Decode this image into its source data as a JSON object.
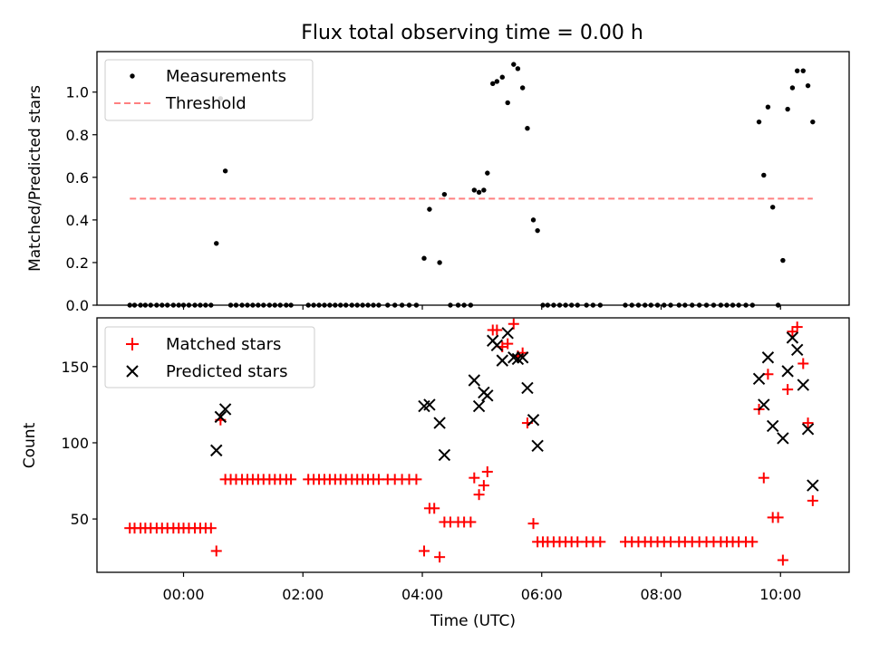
{
  "chart_data": [
    {
      "type": "scatter",
      "title": "Flux total observing time = 0.00 h",
      "ylabel": "Matched/Predicted stars",
      "xlabel": "",
      "xlim": [
        -1.45,
        11.15
      ],
      "ylim": [
        0,
        1.19
      ],
      "yticks": [
        0.0,
        0.2,
        0.4,
        0.6,
        0.8,
        1.0
      ],
      "ytick_labels": [
        "0.0",
        "0.2",
        "0.4",
        "0.6",
        "0.8",
        "1.0"
      ],
      "xticks": [
        0,
        2,
        4,
        6,
        8,
        10
      ],
      "legend_position": "top-left",
      "series": [
        {
          "name": "Measurements",
          "marker": "dot",
          "color": "#000000",
          "points": [
            [
              -0.9,
              0
            ],
            [
              -0.82,
              0
            ],
            [
              -0.72,
              0
            ],
            [
              -0.64,
              0
            ],
            [
              -0.55,
              0
            ],
            [
              -0.45,
              0
            ],
            [
              -0.36,
              0
            ],
            [
              -0.27,
              0
            ],
            [
              -0.17,
              0
            ],
            [
              -0.08,
              0
            ],
            [
              0.0,
              0
            ],
            [
              0.09,
              0
            ],
            [
              0.19,
              0
            ],
            [
              0.28,
              0
            ],
            [
              0.37,
              0
            ],
            [
              0.46,
              0
            ],
            [
              0.55,
              0.29
            ],
            [
              0.62,
              0.97
            ],
            [
              0.7,
              0.63
            ],
            [
              0.79,
              0
            ],
            [
              0.88,
              0
            ],
            [
              0.98,
              0
            ],
            [
              1.07,
              0
            ],
            [
              1.16,
              0
            ],
            [
              1.25,
              0
            ],
            [
              1.34,
              0
            ],
            [
              1.44,
              0
            ],
            [
              1.53,
              0
            ],
            [
              1.62,
              0
            ],
            [
              1.72,
              0
            ],
            [
              1.8,
              0
            ],
            [
              2.09,
              0
            ],
            [
              2.18,
              0
            ],
            [
              2.27,
              0
            ],
            [
              2.36,
              0
            ],
            [
              2.45,
              0
            ],
            [
              2.54,
              0
            ],
            [
              2.63,
              0
            ],
            [
              2.72,
              0
            ],
            [
              2.82,
              0
            ],
            [
              2.91,
              0
            ],
            [
              3.0,
              0
            ],
            [
              3.09,
              0
            ],
            [
              3.18,
              0
            ],
            [
              3.27,
              0
            ],
            [
              3.42,
              0
            ],
            [
              3.54,
              0
            ],
            [
              3.66,
              0
            ],
            [
              3.78,
              0
            ],
            [
              3.9,
              0
            ],
            [
              4.03,
              0.22
            ],
            [
              4.12,
              0.45
            ],
            [
              4.29,
              0.2
            ],
            [
              4.37,
              0.52
            ],
            [
              4.47,
              0
            ],
            [
              4.6,
              0
            ],
            [
              4.7,
              0
            ],
            [
              4.81,
              0
            ],
            [
              4.87,
              0.54
            ],
            [
              4.95,
              0.53
            ],
            [
              5.03,
              0.54
            ],
            [
              5.09,
              0.62
            ],
            [
              5.18,
              1.04
            ],
            [
              5.25,
              1.05
            ],
            [
              5.34,
              1.07
            ],
            [
              5.43,
              0.95
            ],
            [
              5.53,
              1.13
            ],
            [
              5.6,
              1.11
            ],
            [
              5.68,
              1.02
            ],
            [
              5.76,
              0.83
            ],
            [
              5.86,
              0.4
            ],
            [
              5.93,
              0.35
            ],
            [
              6.02,
              0
            ],
            [
              6.1,
              0
            ],
            [
              6.2,
              0
            ],
            [
              6.3,
              0
            ],
            [
              6.4,
              0
            ],
            [
              6.5,
              0
            ],
            [
              6.6,
              0
            ],
            [
              6.75,
              0
            ],
            [
              6.86,
              0
            ],
            [
              6.98,
              0
            ],
            [
              7.4,
              0
            ],
            [
              7.51,
              0
            ],
            [
              7.62,
              0
            ],
            [
              7.73,
              0
            ],
            [
              7.83,
              0
            ],
            [
              7.94,
              0
            ],
            [
              8.05,
              0
            ],
            [
              8.16,
              0
            ],
            [
              8.3,
              0
            ],
            [
              8.4,
              0
            ],
            [
              8.52,
              0
            ],
            [
              8.64,
              0
            ],
            [
              8.76,
              0
            ],
            [
              8.88,
              0
            ],
            [
              9.0,
              0
            ],
            [
              9.1,
              0
            ],
            [
              9.2,
              0
            ],
            [
              9.3,
              0
            ],
            [
              9.42,
              0
            ],
            [
              9.53,
              0
            ],
            [
              9.64,
              0.86
            ],
            [
              9.72,
              0.61
            ],
            [
              9.79,
              0.93
            ],
            [
              9.87,
              0.46
            ],
            [
              9.96,
              0
            ],
            [
              10.04,
              0.21
            ],
            [
              10.12,
              0.92
            ],
            [
              10.2,
              1.02
            ],
            [
              10.28,
              1.1
            ],
            [
              10.38,
              1.1
            ],
            [
              10.46,
              1.03
            ],
            [
              10.54,
              0.86
            ]
          ]
        },
        {
          "name": "Threshold",
          "type": "line",
          "style": "dashed",
          "color": "#ff8080",
          "x": [
            -0.9,
            10.54
          ],
          "values": [
            0.5,
            0.5
          ]
        }
      ]
    },
    {
      "type": "scatter",
      "title": "",
      "ylabel": "Count",
      "xlabel": "Time (UTC)",
      "xlim": [
        -1.45,
        11.15
      ],
      "ylim": [
        15,
        182
      ],
      "yticks": [
        50,
        100,
        150
      ],
      "ytick_labels": [
        "50",
        "100",
        "150"
      ],
      "xticks": [
        0,
        2,
        4,
        6,
        8,
        10
      ],
      "xtick_labels": [
        "00:00",
        "02:00",
        "04:00",
        "06:00",
        "08:00",
        "10:00"
      ],
      "legend_position": "top-left",
      "series": [
        {
          "name": "Matched stars",
          "marker": "plus",
          "color": "#ff0000",
          "points": [
            [
              -0.9,
              44
            ],
            [
              -0.82,
              44
            ],
            [
              -0.72,
              44
            ],
            [
              -0.64,
              44
            ],
            [
              -0.55,
              44
            ],
            [
              -0.45,
              44
            ],
            [
              -0.36,
              44
            ],
            [
              -0.27,
              44
            ],
            [
              -0.17,
              44
            ],
            [
              -0.08,
              44
            ],
            [
              0.0,
              44
            ],
            [
              0.09,
              44
            ],
            [
              0.19,
              44
            ],
            [
              0.28,
              44
            ],
            [
              0.37,
              44
            ],
            [
              0.46,
              44
            ],
            [
              0.55,
              29
            ],
            [
              0.62,
              115
            ],
            [
              0.7,
              76
            ],
            [
              0.79,
              76
            ],
            [
              0.88,
              76
            ],
            [
              0.98,
              76
            ],
            [
              1.07,
              76
            ],
            [
              1.16,
              76
            ],
            [
              1.25,
              76
            ],
            [
              1.34,
              76
            ],
            [
              1.44,
              76
            ],
            [
              1.53,
              76
            ],
            [
              1.62,
              76
            ],
            [
              1.72,
              76
            ],
            [
              1.8,
              76
            ],
            [
              2.09,
              76
            ],
            [
              2.18,
              76
            ],
            [
              2.27,
              76
            ],
            [
              2.36,
              76
            ],
            [
              2.45,
              76
            ],
            [
              2.54,
              76
            ],
            [
              2.63,
              76
            ],
            [
              2.72,
              76
            ],
            [
              2.82,
              76
            ],
            [
              2.91,
              76
            ],
            [
              3.0,
              76
            ],
            [
              3.09,
              76
            ],
            [
              3.18,
              76
            ],
            [
              3.27,
              76
            ],
            [
              3.42,
              76
            ],
            [
              3.54,
              76
            ],
            [
              3.66,
              76
            ],
            [
              3.78,
              76
            ],
            [
              3.9,
              76
            ],
            [
              4.03,
              29
            ],
            [
              4.12,
              57
            ],
            [
              4.2,
              57
            ],
            [
              4.29,
              25
            ],
            [
              4.37,
              48
            ],
            [
              4.47,
              48
            ],
            [
              4.6,
              48
            ],
            [
              4.7,
              48
            ],
            [
              4.81,
              48
            ],
            [
              4.87,
              77
            ],
            [
              4.95,
              66
            ],
            [
              5.03,
              72
            ],
            [
              5.09,
              81
            ],
            [
              5.18,
              174
            ],
            [
              5.25,
              174
            ],
            [
              5.34,
              163
            ],
            [
              5.43,
              165
            ],
            [
              5.53,
              178
            ],
            [
              5.6,
              157
            ],
            [
              5.68,
              159
            ],
            [
              5.76,
              113
            ],
            [
              5.86,
              47
            ],
            [
              5.93,
              35
            ],
            [
              6.02,
              35
            ],
            [
              6.1,
              35
            ],
            [
              6.2,
              35
            ],
            [
              6.3,
              35
            ],
            [
              6.4,
              35
            ],
            [
              6.5,
              35
            ],
            [
              6.6,
              35
            ],
            [
              6.75,
              35
            ],
            [
              6.86,
              35
            ],
            [
              6.98,
              35
            ],
            [
              7.4,
              35
            ],
            [
              7.51,
              35
            ],
            [
              7.62,
              35
            ],
            [
              7.73,
              35
            ],
            [
              7.83,
              35
            ],
            [
              7.94,
              35
            ],
            [
              8.05,
              35
            ],
            [
              8.16,
              35
            ],
            [
              8.3,
              35
            ],
            [
              8.4,
              35
            ],
            [
              8.52,
              35
            ],
            [
              8.64,
              35
            ],
            [
              8.76,
              35
            ],
            [
              8.88,
              35
            ],
            [
              9.0,
              35
            ],
            [
              9.1,
              35
            ],
            [
              9.2,
              35
            ],
            [
              9.3,
              35
            ],
            [
              9.42,
              35
            ],
            [
              9.53,
              35
            ],
            [
              9.64,
              122
            ],
            [
              9.72,
              77
            ],
            [
              9.79,
              145
            ],
            [
              9.87,
              51
            ],
            [
              9.96,
              51
            ],
            [
              10.04,
              23
            ],
            [
              10.12,
              135
            ],
            [
              10.2,
              173
            ],
            [
              10.28,
              176
            ],
            [
              10.38,
              152
            ],
            [
              10.46,
              113
            ],
            [
              10.54,
              62
            ]
          ]
        },
        {
          "name": "Predicted stars",
          "marker": "x",
          "color": "#000000",
          "points": [
            [
              0.55,
              95
            ],
            [
              0.62,
              117
            ],
            [
              0.7,
              122
            ],
            [
              4.03,
              124
            ],
            [
              4.12,
              125
            ],
            [
              4.29,
              113
            ],
            [
              4.37,
              92
            ],
            [
              4.87,
              141
            ],
            [
              4.95,
              124
            ],
            [
              5.03,
              133
            ],
            [
              5.09,
              131
            ],
            [
              5.18,
              167
            ],
            [
              5.25,
              164
            ],
            [
              5.34,
              154
            ],
            [
              5.43,
              172
            ],
            [
              5.53,
              156
            ],
            [
              5.6,
              155
            ],
            [
              5.68,
              156
            ],
            [
              5.76,
              136
            ],
            [
              5.86,
              115
            ],
            [
              5.93,
              98
            ],
            [
              9.64,
              142
            ],
            [
              9.72,
              125
            ],
            [
              9.79,
              156
            ],
            [
              9.87,
              111
            ],
            [
              10.04,
              103
            ],
            [
              10.12,
              147
            ],
            [
              10.2,
              169
            ],
            [
              10.28,
              161
            ],
            [
              10.38,
              138
            ],
            [
              10.46,
              109
            ],
            [
              10.54,
              72
            ]
          ]
        }
      ]
    }
  ]
}
